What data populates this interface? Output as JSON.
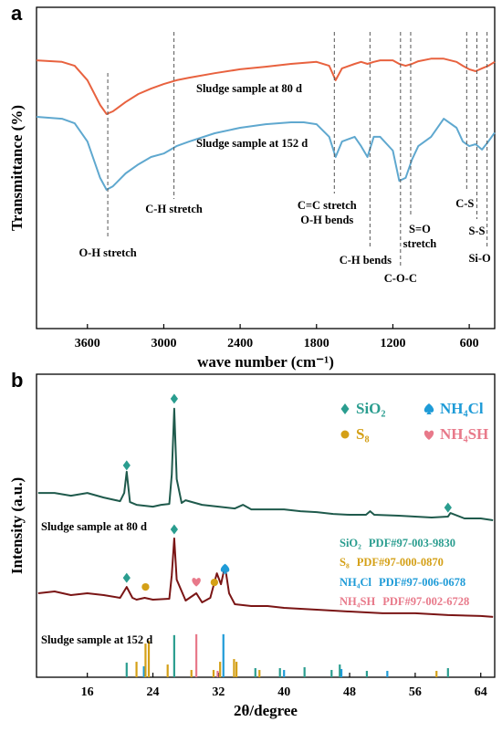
{
  "chart_data": [
    {
      "type": "line",
      "panel_label": "a",
      "xlabel": "wave number (cm⁻¹)",
      "ylabel": "Transmittance (%)",
      "xlim": [
        4000,
        400
      ],
      "xticks": [
        3600,
        3000,
        2400,
        1800,
        1200,
        600
      ],
      "ylim": [
        0,
        100
      ],
      "x": [
        4000,
        3800,
        3700,
        3600,
        3500,
        3450,
        3400,
        3300,
        3200,
        3100,
        3000,
        2900,
        2800,
        2600,
        2400,
        2200,
        2000,
        1900,
        1800,
        1700,
        1650,
        1600,
        1500,
        1450,
        1400,
        1350,
        1300,
        1200,
        1150,
        1100,
        1050,
        1000,
        900,
        800,
        700,
        650,
        600,
        550,
        500,
        450,
        400
      ],
      "series": [
        {
          "name": "Sludge sample at 80 d",
          "color": "#e8623f",
          "values": [
            83.5,
            83,
            81.8,
            77.3,
            69.6,
            66.8,
            67.6,
            70.5,
            73,
            74.7,
            76.1,
            77.3,
            78.1,
            79.5,
            80.7,
            81.5,
            82.4,
            82.7,
            83,
            81.8,
            77.3,
            81,
            82.4,
            83,
            82.4,
            83,
            83.5,
            83.5,
            82.4,
            81.8,
            82.4,
            83.2,
            84,
            84,
            83,
            81.8,
            80.7,
            80.1,
            81,
            81.8,
            83
          ]
        },
        {
          "name": "Sludge sample at 152 d",
          "color": "#5fa8cf",
          "values": [
            65.9,
            65.3,
            63.9,
            58.2,
            46.9,
            43.2,
            44.3,
            48.3,
            51.1,
            53.4,
            54.5,
            56.8,
            58.2,
            60.8,
            62.5,
            63.6,
            64.2,
            64.2,
            63.6,
            59.7,
            53.4,
            58.2,
            59.7,
            56.8,
            53.4,
            59.7,
            59.7,
            55.4,
            46,
            46.9,
            52.6,
            56.8,
            59.7,
            65.3,
            62.5,
            58.2,
            56.8,
            57.4,
            55.7,
            58.2,
            61
          ]
        }
      ],
      "annotations": [
        {
          "x": 3440,
          "label": [
            "O-H stretch"
          ]
        },
        {
          "x": 2920,
          "label": [
            "C-H stretch"
          ]
        },
        {
          "x": 1660,
          "label": [
            "C=C stretch",
            "O-H bends"
          ]
        },
        {
          "x": 1380,
          "label": [
            "C-H bends"
          ]
        },
        {
          "x": 1140,
          "label": [
            "C-O-C"
          ]
        },
        {
          "x": 1060,
          "label": [
            "S=O",
            "stretch"
          ]
        },
        {
          "x": 620,
          "label": [
            "C-S"
          ]
        },
        {
          "x": 540,
          "label": [
            "S-S"
          ]
        },
        {
          "x": 460,
          "label": [
            "Si-O"
          ]
        }
      ]
    },
    {
      "type": "line",
      "panel_label": "b",
      "xlabel": "2θ/degree",
      "ylabel": "Intensity (a.u.)",
      "xlim": [
        9.8,
        65.7
      ],
      "xticks": [
        16,
        24,
        32,
        40,
        48,
        56,
        64
      ],
      "ylim": [
        0,
        100
      ],
      "series": [
        {
          "name": "Sludge sample at 80 d",
          "color": "#1f5a4c",
          "x": [
            10,
            12,
            14,
            16,
            18,
            19,
            20,
            20.5,
            20.8,
            21.2,
            22,
            24,
            25,
            26,
            26.3,
            26.6,
            26.9,
            27.5,
            28,
            30,
            32,
            34,
            35,
            36,
            38,
            40,
            42,
            44,
            46,
            48,
            50,
            50.5,
            51,
            54,
            58,
            60,
            60.3,
            62,
            64,
            65.5
          ],
          "values": [
            60.8,
            60.8,
            59.9,
            60.8,
            59.3,
            58.7,
            58.1,
            60.8,
            67.8,
            57.8,
            56.9,
            56.3,
            56.9,
            57.2,
            66.9,
            88.6,
            65.4,
            57.5,
            58.4,
            56.9,
            56.3,
            55.7,
            56.9,
            55.4,
            55.4,
            55.4,
            54.8,
            54.5,
            53.9,
            53.6,
            53.6,
            54.8,
            53.6,
            53.3,
            52.7,
            53,
            54.2,
            52.4,
            52.4,
            51.8
          ]
        },
        {
          "name": "Sludge sample at 152 d",
          "color": "#7a1515",
          "x": [
            10,
            12,
            14,
            16,
            18,
            20,
            20.8,
            21.5,
            22,
            23,
            24,
            26,
            26.3,
            26.6,
            26.9,
            28,
            29.3,
            30,
            31,
            31.8,
            32.3,
            32.8,
            33.3,
            34,
            36,
            38,
            40,
            44,
            48,
            52,
            56,
            60,
            64,
            65.5
          ],
          "values": [
            27.7,
            28.3,
            27.1,
            27.7,
            27.1,
            26.2,
            29.8,
            26.2,
            25.6,
            26.2,
            25.6,
            25.9,
            33.7,
            45.8,
            32.2,
            25.3,
            27.7,
            24.7,
            26.2,
            34.3,
            30.7,
            36.7,
            27.7,
            24.1,
            23.5,
            23.5,
            22.9,
            22.3,
            21.7,
            21.1,
            21.1,
            20.5,
            20.2,
            19.9
          ]
        }
      ],
      "phases": [
        {
          "name": "SiO₂",
          "pdf": "PDF#97-003-9830",
          "color": "#2a9d8f",
          "marker": "diamond",
          "sticks_x": [
            20.8,
            26.6,
            36.5,
            39.5,
            42.5,
            45.8,
            46.8,
            50.1,
            60
          ],
          "sticks_h": [
            4.8,
            13.9,
            3,
            3,
            3.3,
            2.4,
            4.2,
            2.1,
            3
          ]
        },
        {
          "name": "NH₄Cl",
          "pdf": "PDF#97-006-0678",
          "color": "#1e9bd7",
          "marker": "spade",
          "sticks_x": [
            22.9,
            32.6,
            40,
            47,
            52.6
          ],
          "sticks_h": [
            3.6,
            14.2,
            2.4,
            2.7,
            2.1
          ]
        },
        {
          "name": "S₈",
          "pdf": "PDF#97-000-0870",
          "color": "#d4a017",
          "marker": "circle",
          "sticks_x": [
            22,
            23.1,
            23.5,
            25.8,
            28.7,
            31.4,
            32.2,
            33.9,
            34.2,
            37,
            58.6
          ],
          "sticks_h": [
            5.1,
            11.1,
            12,
            4.2,
            2.4,
            2.4,
            5.1,
            6,
            5.1,
            2.4,
            2.1
          ]
        },
        {
          "name": "NH₄SH",
          "pdf": "PDF#97-002-6728",
          "color": "#e8798a",
          "marker": "heart",
          "sticks_x": [
            29.3,
            31.9
          ],
          "sticks_h": [
            14.2,
            2.1
          ]
        }
      ],
      "phase_markers": [
        {
          "phase": 0,
          "x": 20.8,
          "y": 69.9
        },
        {
          "phase": 0,
          "x": 26.6,
          "y": 91.9
        },
        {
          "phase": 0,
          "x": 60,
          "y": 56
        },
        {
          "phase": 0,
          "x": 20.8,
          "y": 32.8
        },
        {
          "phase": 0,
          "x": 26.6,
          "y": 48.8
        },
        {
          "phase": 2,
          "x": 23.1,
          "y": 29.8
        },
        {
          "phase": 2,
          "x": 31.5,
          "y": 31.3
        },
        {
          "phase": 3,
          "x": 29.3,
          "y": 31.6
        },
        {
          "phase": 1,
          "x": 32.8,
          "y": 35.8
        }
      ]
    }
  ]
}
